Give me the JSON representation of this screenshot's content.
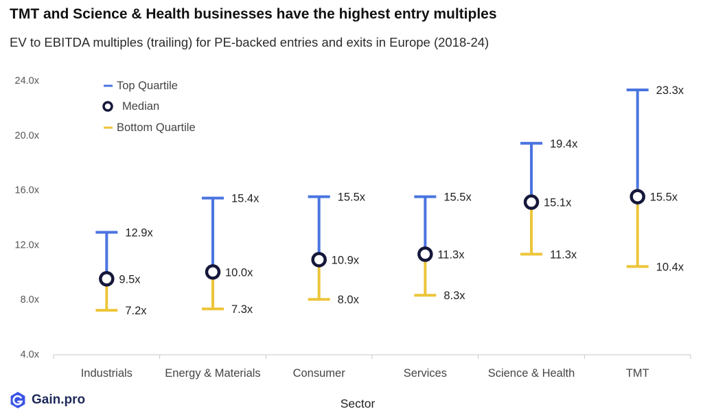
{
  "header": {
    "title": "TMT and Science & Health businesses have the highest entry multiples",
    "subtitle": "EV to EBITDA multiples (trailing) for PE-backed entries and exits in Europe (2018-24)"
  },
  "branding": {
    "logo_text": "Gain.pro",
    "logo_icon": "gain-pro-logo-icon"
  },
  "colors": {
    "top": "#4a74e0",
    "bottom": "#edc53a",
    "median_stroke": "#15173a",
    "axis": "#c7c7c7"
  },
  "chart_data": {
    "type": "range",
    "title": "TMT and Science & Health businesses have the highest entry multiples",
    "subtitle": "EV to EBITDA multiples (trailing) for PE-backed entries and exits in Europe (2018-24)",
    "xlabel": "Sector",
    "ylabel": "",
    "ylim": [
      4,
      24
    ],
    "yticks": [
      4,
      8,
      12,
      16,
      20,
      24
    ],
    "ytick_labels": [
      "4.0x",
      "8.0x",
      "12.0x",
      "16.0x",
      "20.0x",
      "24.0x"
    ],
    "grid": false,
    "legend_position": "top-left",
    "legend": [
      "Top Quartile",
      "Median",
      "Bottom Quartile"
    ],
    "categories": [
      "Industrials",
      "Energy & Materials",
      "Consumer",
      "Services",
      "Science & Health",
      "TMT"
    ],
    "series": [
      {
        "name": "Top Quartile",
        "values": [
          12.9,
          15.4,
          15.5,
          15.5,
          19.4,
          23.3
        ],
        "labels": [
          "12.9x",
          "15.4x",
          "15.5x",
          "15.5x",
          "19.4x",
          "23.3x"
        ]
      },
      {
        "name": "Median",
        "values": [
          9.5,
          10.0,
          10.9,
          11.3,
          15.1,
          15.5
        ],
        "labels": [
          "9.5x",
          "10.0x",
          "10.9x",
          "11.3x",
          "15.1x",
          "15.5x"
        ]
      },
      {
        "name": "Bottom Quartile",
        "values": [
          7.2,
          7.3,
          8.0,
          8.3,
          11.3,
          10.4
        ],
        "labels": [
          "7.2x",
          "7.3x",
          "8.0x",
          "8.3x",
          "11.3x",
          "10.4x"
        ]
      }
    ]
  }
}
